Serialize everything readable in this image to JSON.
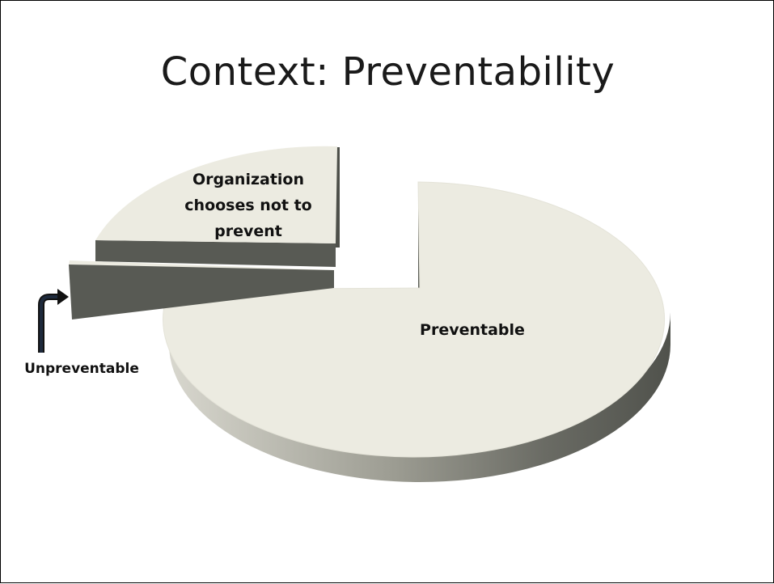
{
  "slide": {
    "title": "Context: Preventability"
  },
  "chart_data": {
    "type": "pie",
    "title": "Context: Preventability",
    "style": "3d-exploded",
    "slices": [
      {
        "label": "Preventable",
        "value": 75,
        "color": "#ecebe1"
      },
      {
        "label": "Organization chooses not to prevent",
        "value": 21,
        "color": "#ecebe1"
      },
      {
        "label": "Unpreventable",
        "value": 4,
        "color": "#ecebe1"
      }
    ],
    "side_color_dark": "#585a54",
    "side_color_light": "#d6d5cc"
  },
  "labels": {
    "org_line1": "Organization",
    "org_line2": "chooses not to",
    "org_line3": "prevent"
  }
}
